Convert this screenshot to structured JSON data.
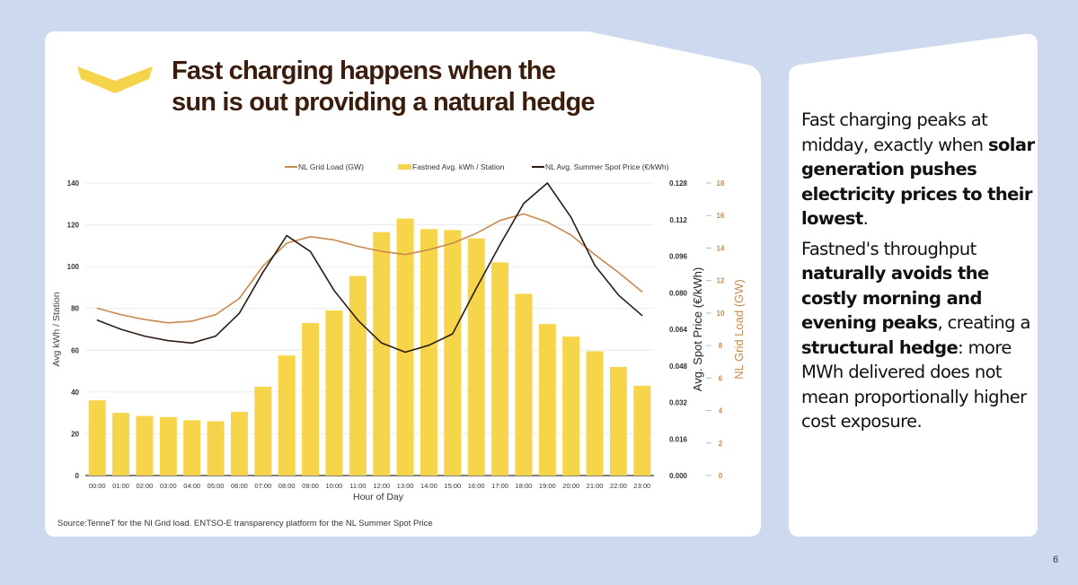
{
  "slide": {
    "title_line1": "Fast charging happens when the",
    "title_line2": "sun is out providing a natural hedge",
    "source": "Source:TenneT for the Nl Grid load. ENTSO-E transparency platform for the NL Summer Spot Price",
    "page_number": "6"
  },
  "side_text": {
    "paragraphs": [
      [
        {
          "text": "Fast charging peaks at midday,  exactly when ",
          "bold": false
        },
        {
          "text": "solar generation pushes electricity prices to their lowest",
          "bold": true
        },
        {
          "text": ".",
          "bold": false
        }
      ],
      [
        {
          "text": "Fastned's throughput ",
          "bold": false
        },
        {
          "text": "naturally avoids the costly morning and evening peaks",
          "bold": true
        },
        {
          "text": ", creating a ",
          "bold": false
        },
        {
          "text": "structural hedge",
          "bold": true
        },
        {
          "text": ": more MWh delivered does not mean proportionally higher cost exposure.",
          "bold": false
        }
      ]
    ]
  },
  "colors": {
    "background": "#cdd9ef",
    "bars": "#f7d54a",
    "grid_load": "#c98a4e",
    "spot_price": "#2b1d14",
    "title": "#3a1d0c",
    "logo": "#f5d34a"
  },
  "chart_data": {
    "type": "bar+line",
    "xlabel": "Hour of Day",
    "categories": [
      "00:00",
      "01:00",
      "02:00",
      "03:00",
      "04:00",
      "05:00",
      "06:00",
      "07:00",
      "08:00",
      "09:00",
      "10:00",
      "11:00",
      "12:00",
      "13:00",
      "14:00",
      "15:00",
      "16:00",
      "17:00",
      "18:00",
      "19:00",
      "20:00",
      "21:00",
      "22:00",
      "23:00"
    ],
    "legend": [
      "NL Grid Load (GW)",
      "Fastned Avg. kWh / Station",
      "NL Avg. Summer Spot Price (€/kWh)"
    ],
    "legend_position": "top",
    "grid": true,
    "axes": {
      "left": {
        "label": "Avg kWh / Station",
        "range": [
          0,
          140
        ],
        "ticks": [
          "0",
          "20",
          "40",
          "60",
          "80",
          "100",
          "120",
          "140"
        ]
      },
      "right_price": {
        "label": "Avg. Spot Price (€/kWh)",
        "range": [
          0,
          0.128
        ],
        "ticks": [
          "0.000",
          "0.016",
          "0.032",
          "0.048",
          "0.064",
          "0.080",
          "0.096",
          "0.112",
          "0.128"
        ]
      },
      "right_load": {
        "label": "NL Grid Load (GW)",
        "range": [
          0,
          18
        ],
        "ticks": [
          "0",
          "2",
          "4",
          "6",
          "8",
          "10",
          "12",
          "14",
          "16",
          "18"
        ]
      }
    },
    "series": [
      {
        "name": "Fastned Avg. kWh / Station",
        "type": "bar",
        "axis": "left",
        "values": [
          36,
          30,
          28.5,
          28,
          26.5,
          26,
          30.5,
          42.5,
          57.5,
          73,
          79,
          95.5,
          116.5,
          123,
          118,
          117.5,
          113.5,
          102,
          87,
          72.5,
          66.5,
          59.5,
          52,
          43
        ]
      },
      {
        "name": "NL Grid Load (GW)",
        "type": "line",
        "axis": "right_load",
        "values": [
          10.3,
          9.9,
          9.6,
          9.4,
          9.5,
          9.9,
          10.9,
          12.9,
          14.3,
          14.7,
          14.5,
          14.1,
          13.8,
          13.6,
          13.9,
          14.3,
          14.9,
          15.7,
          16.1,
          15.6,
          14.8,
          13.6,
          12.5,
          11.3
        ]
      },
      {
        "name": "NL Avg. Summer Spot Price (€/kWh)",
        "type": "line",
        "axis": "right_price",
        "values": [
          0.068,
          0.064,
          0.061,
          0.059,
          0.058,
          0.061,
          0.071,
          0.089,
          0.105,
          0.098,
          0.081,
          0.068,
          0.058,
          0.054,
          0.057,
          0.062,
          0.082,
          0.101,
          0.119,
          0.128,
          0.113,
          0.092,
          0.079,
          0.07
        ]
      }
    ]
  }
}
